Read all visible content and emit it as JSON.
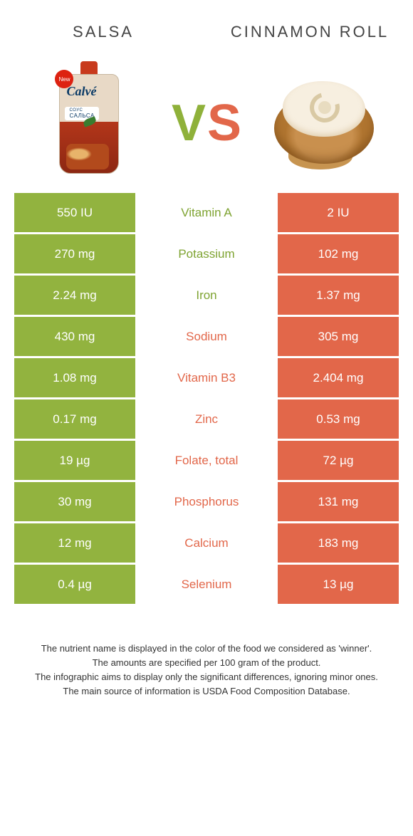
{
  "colors": {
    "green": "#92b33f",
    "orange": "#e2674a",
    "green_text": "#7ea331",
    "orange_text": "#e2674a",
    "background": "#ffffff"
  },
  "header": {
    "left_title": "Salsa",
    "right_title": "Cinnamon roll"
  },
  "vs": {
    "v": "V",
    "s": "S"
  },
  "product_art": {
    "salsa": {
      "badge": "New",
      "brand": "Calvé",
      "sub_brand_prefix": "СОУС",
      "sub_brand": "САЛЬСА"
    },
    "roll": {
      "name": "cinnamon-roll"
    }
  },
  "table": {
    "left_bg": "bg-green",
    "right_bg": "bg-orange",
    "rows": [
      {
        "left": "550 IU",
        "mid": "Vitamin A",
        "right": "2 IU",
        "winner": "left"
      },
      {
        "left": "270 mg",
        "mid": "Potassium",
        "right": "102 mg",
        "winner": "left"
      },
      {
        "left": "2.24 mg",
        "mid": "Iron",
        "right": "1.37 mg",
        "winner": "left"
      },
      {
        "left": "430 mg",
        "mid": "Sodium",
        "right": "305 mg",
        "winner": "right"
      },
      {
        "left": "1.08 mg",
        "mid": "Vitamin B3",
        "right": "2.404 mg",
        "winner": "right"
      },
      {
        "left": "0.17 mg",
        "mid": "Zinc",
        "right": "0.53 mg",
        "winner": "right"
      },
      {
        "left": "19 µg",
        "mid": "Folate, total",
        "right": "72 µg",
        "winner": "right"
      },
      {
        "left": "30 mg",
        "mid": "Phosphorus",
        "right": "131 mg",
        "winner": "right"
      },
      {
        "left": "12 mg",
        "mid": "Calcium",
        "right": "183 mg",
        "winner": "right"
      },
      {
        "left": "0.4 µg",
        "mid": "Selenium",
        "right": "13 µg",
        "winner": "right"
      }
    ]
  },
  "footnotes": {
    "l1": "The nutrient name is displayed in the color of the food we considered as 'winner'.",
    "l2": "The amounts are specified per 100 gram of the product.",
    "l3": "The infographic aims to display only the significant differences, ignoring minor ones.",
    "l4": "The main source of information is USDA Food Composition Database."
  }
}
